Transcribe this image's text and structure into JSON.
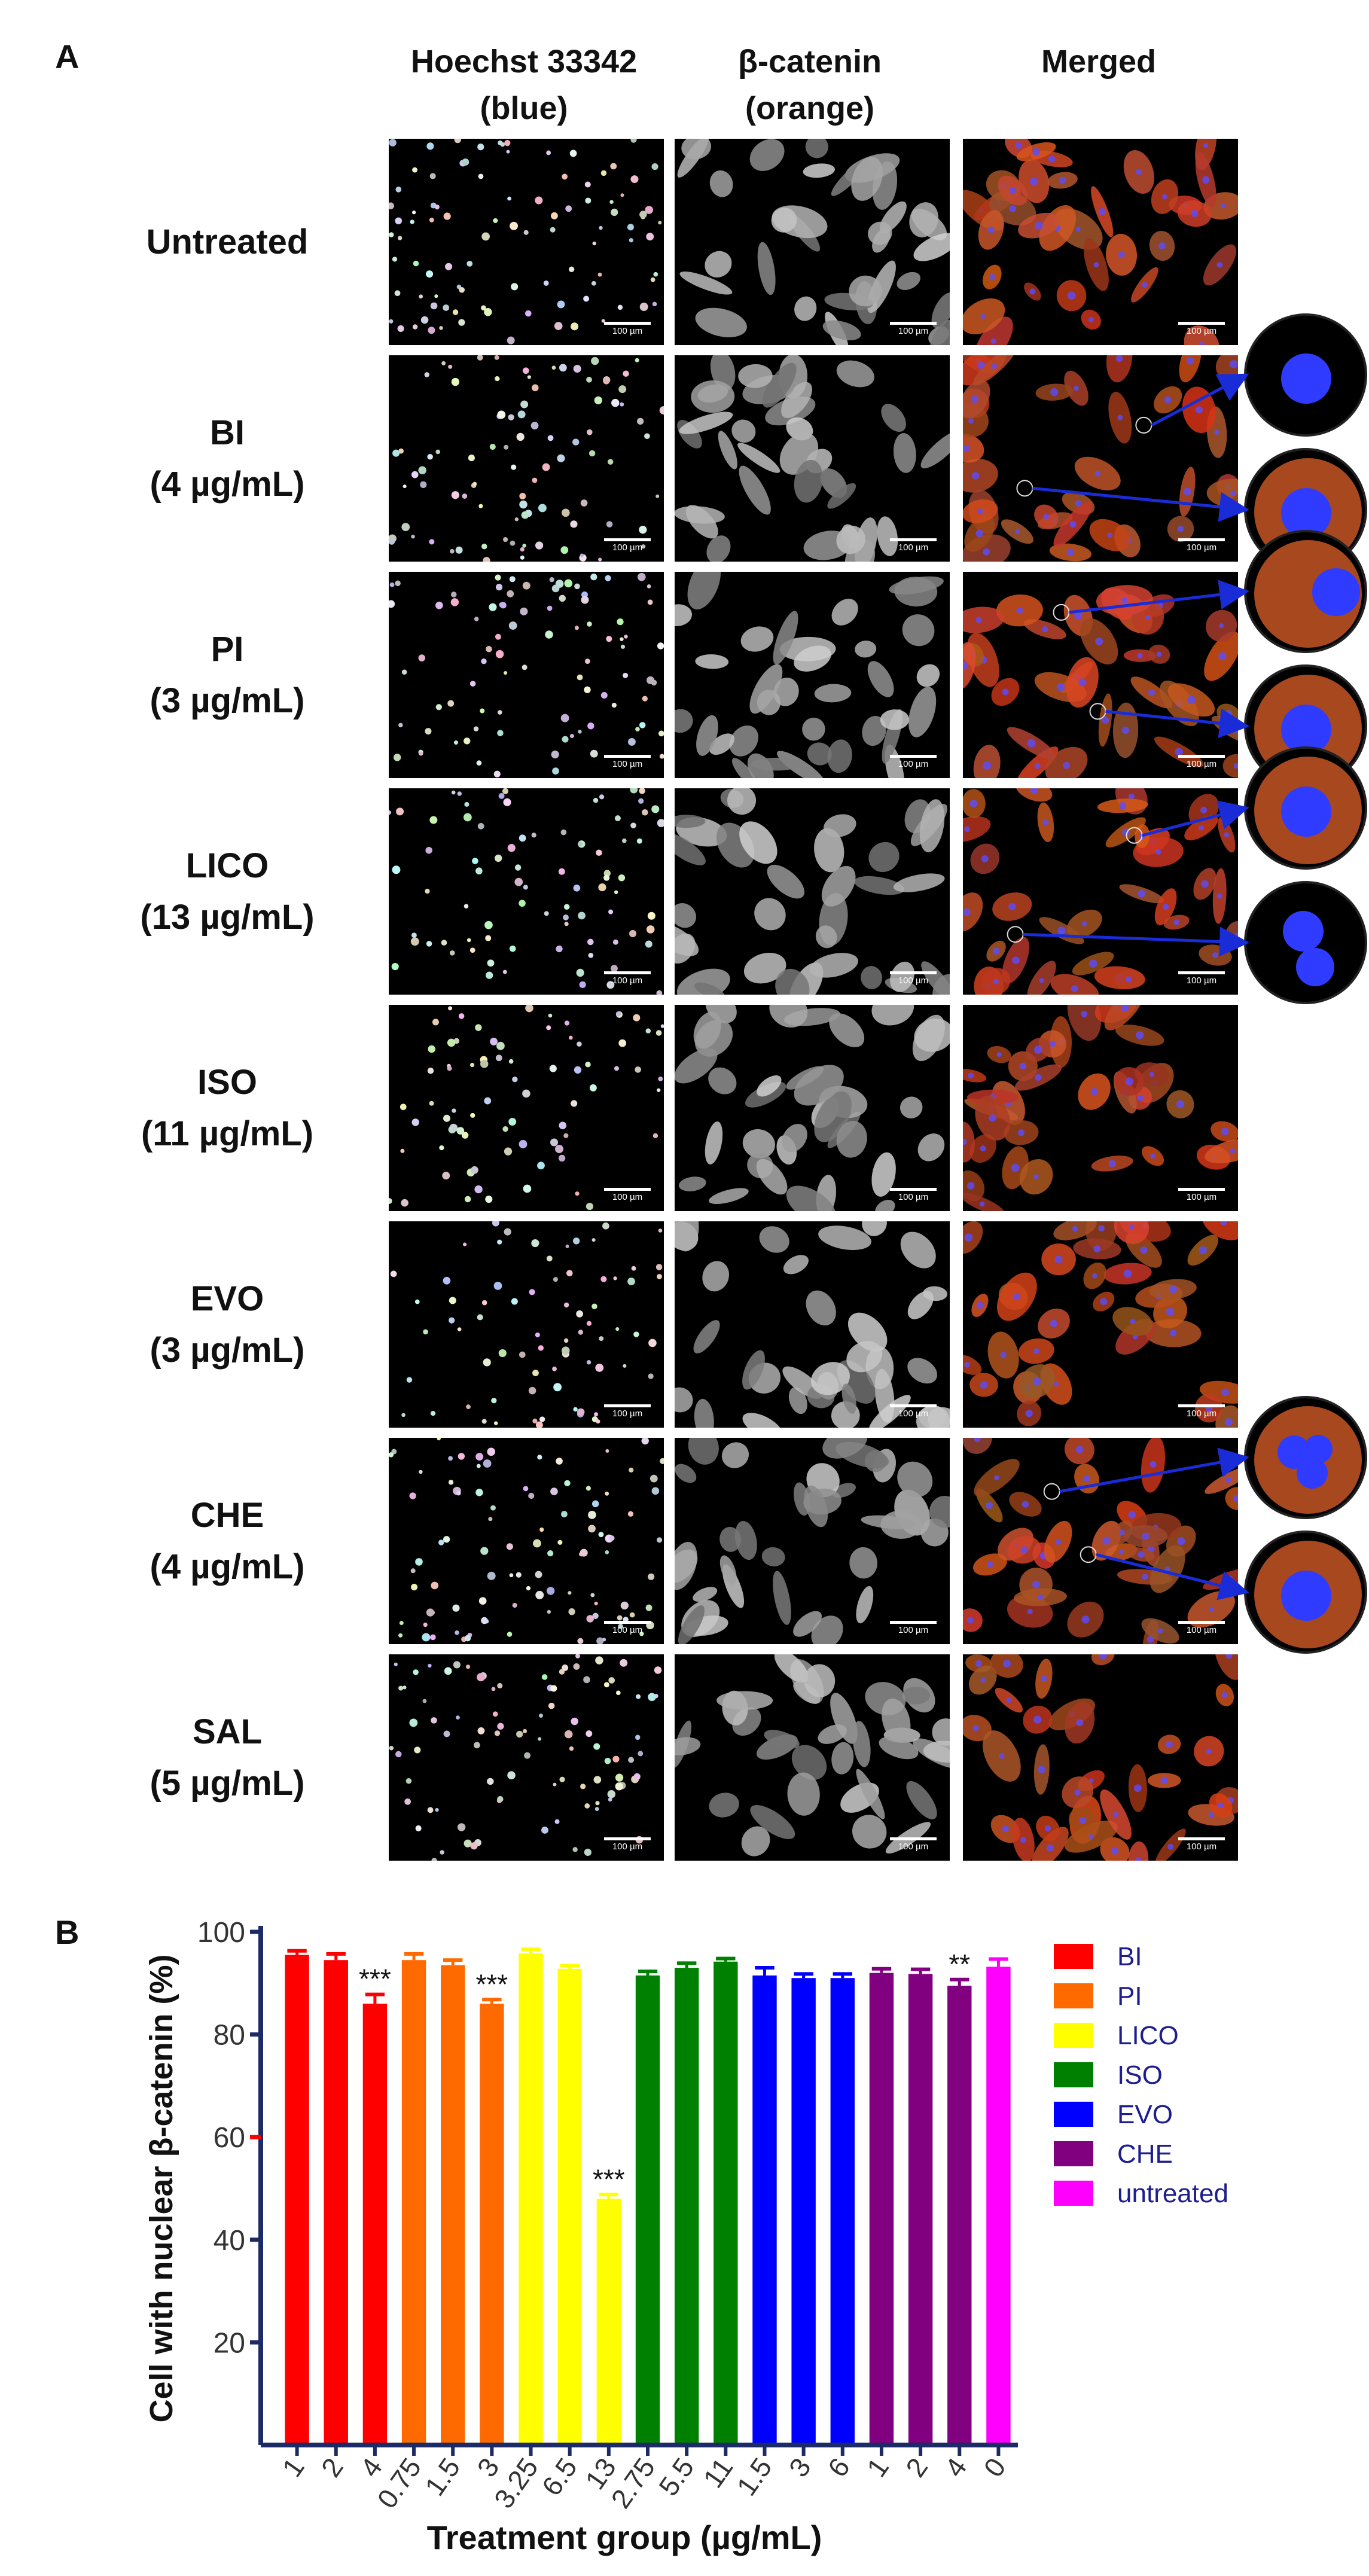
{
  "panel_a": {
    "letter": "A",
    "columns": [
      {
        "line1": "Hoechst 33342",
        "line2": "(blue)",
        "kind": "nuclear"
      },
      {
        "line1": "β-catenin",
        "line2": "(orange)",
        "kind": "gray"
      },
      {
        "line1": "Merged",
        "line2": "",
        "kind": "merged"
      }
    ],
    "scale_label": "100 µm",
    "rows": [
      {
        "line1": "Untreated",
        "line2": ""
      },
      {
        "line1": "BI",
        "line2": "(4 µg/mL)"
      },
      {
        "line1": "PI",
        "line2": "(3 µg/mL)"
      },
      {
        "line1": "LICO",
        "line2": "(13 µg/mL)"
      },
      {
        "line1": "ISO",
        "line2": "(11 µg/mL)"
      },
      {
        "line1": "EVO",
        "line2": "(3 µg/mL)"
      },
      {
        "line1": "CHE",
        "line2": "(4 µg/mL)"
      },
      {
        "line1": "SAL",
        "line2": "(5 µg/mL)"
      }
    ],
    "zoom_insets": [
      {
        "row": 1,
        "type": "single"
      },
      {
        "row": 1,
        "type": "single-orange"
      },
      {
        "row": 2,
        "type": "partial"
      },
      {
        "row": 2,
        "type": "single-orange"
      },
      {
        "row": 3,
        "type": "single-orange"
      },
      {
        "row": 3,
        "type": "double"
      },
      {
        "row": 6,
        "type": "multi"
      },
      {
        "row": 6,
        "type": "single-orange"
      }
    ],
    "colors": {
      "pointer": "#1a2cd8",
      "nucleus": "#2f3cff",
      "cytoplasm": "#e0602a"
    }
  },
  "panel_b": {
    "letter": "B",
    "chart_data": {
      "type": "bar",
      "ylabel": "Cell with nuclear β-catenin (%)",
      "xlabel": "Treatment group (µg/mL)",
      "ylim": [
        0,
        100
      ],
      "yticks": [
        20,
        40,
        60,
        80,
        100
      ],
      "legend_position": "right",
      "series": [
        {
          "name": "BI",
          "color": "#ff0000",
          "x": [
            "1",
            "2",
            "4"
          ],
          "values": [
            95.5,
            94.5,
            86
          ],
          "errors": [
            0.8,
            1.2,
            1.8
          ],
          "sig": [
            "",
            "",
            "***"
          ]
        },
        {
          "name": "PI",
          "color": "#ff6a00",
          "x": [
            "0.75",
            "1.5",
            "3"
          ],
          "values": [
            94.5,
            93.5,
            86
          ],
          "errors": [
            1.2,
            1.0,
            0.8
          ],
          "sig": [
            "",
            "",
            "***"
          ]
        },
        {
          "name": "LICO",
          "color": "#ffff00",
          "x": [
            "3.25",
            "6.5",
            "13"
          ],
          "values": [
            95.8,
            92.8,
            48
          ],
          "errors": [
            0.8,
            0.6,
            0.8
          ],
          "sig": [
            "",
            "",
            "***"
          ]
        },
        {
          "name": "ISO",
          "color": "#008000",
          "x": [
            "2.75",
            "5.5",
            "11"
          ],
          "values": [
            91.5,
            93,
            94.2
          ],
          "errors": [
            0.8,
            0.9,
            0.6
          ],
          "sig": [
            "",
            "",
            ""
          ]
        },
        {
          "name": "EVO",
          "color": "#0000ff",
          "x": [
            "1.5",
            "3",
            "6"
          ],
          "values": [
            91.5,
            91,
            91
          ],
          "errors": [
            1.5,
            0.8,
            0.8
          ],
          "sig": [
            "",
            "",
            ""
          ]
        },
        {
          "name": "CHE",
          "color": "#800080",
          "x": [
            "1",
            "2",
            "4"
          ],
          "values": [
            92,
            91.8,
            89.5
          ],
          "errors": [
            0.8,
            0.9,
            1.2
          ],
          "sig": [
            "",
            "",
            "**"
          ]
        },
        {
          "name": "untreated",
          "color": "#ff00ff",
          "x": [
            "0"
          ],
          "values": [
            93.2
          ],
          "errors": [
            1.5
          ],
          "sig": [
            ""
          ]
        }
      ]
    }
  }
}
